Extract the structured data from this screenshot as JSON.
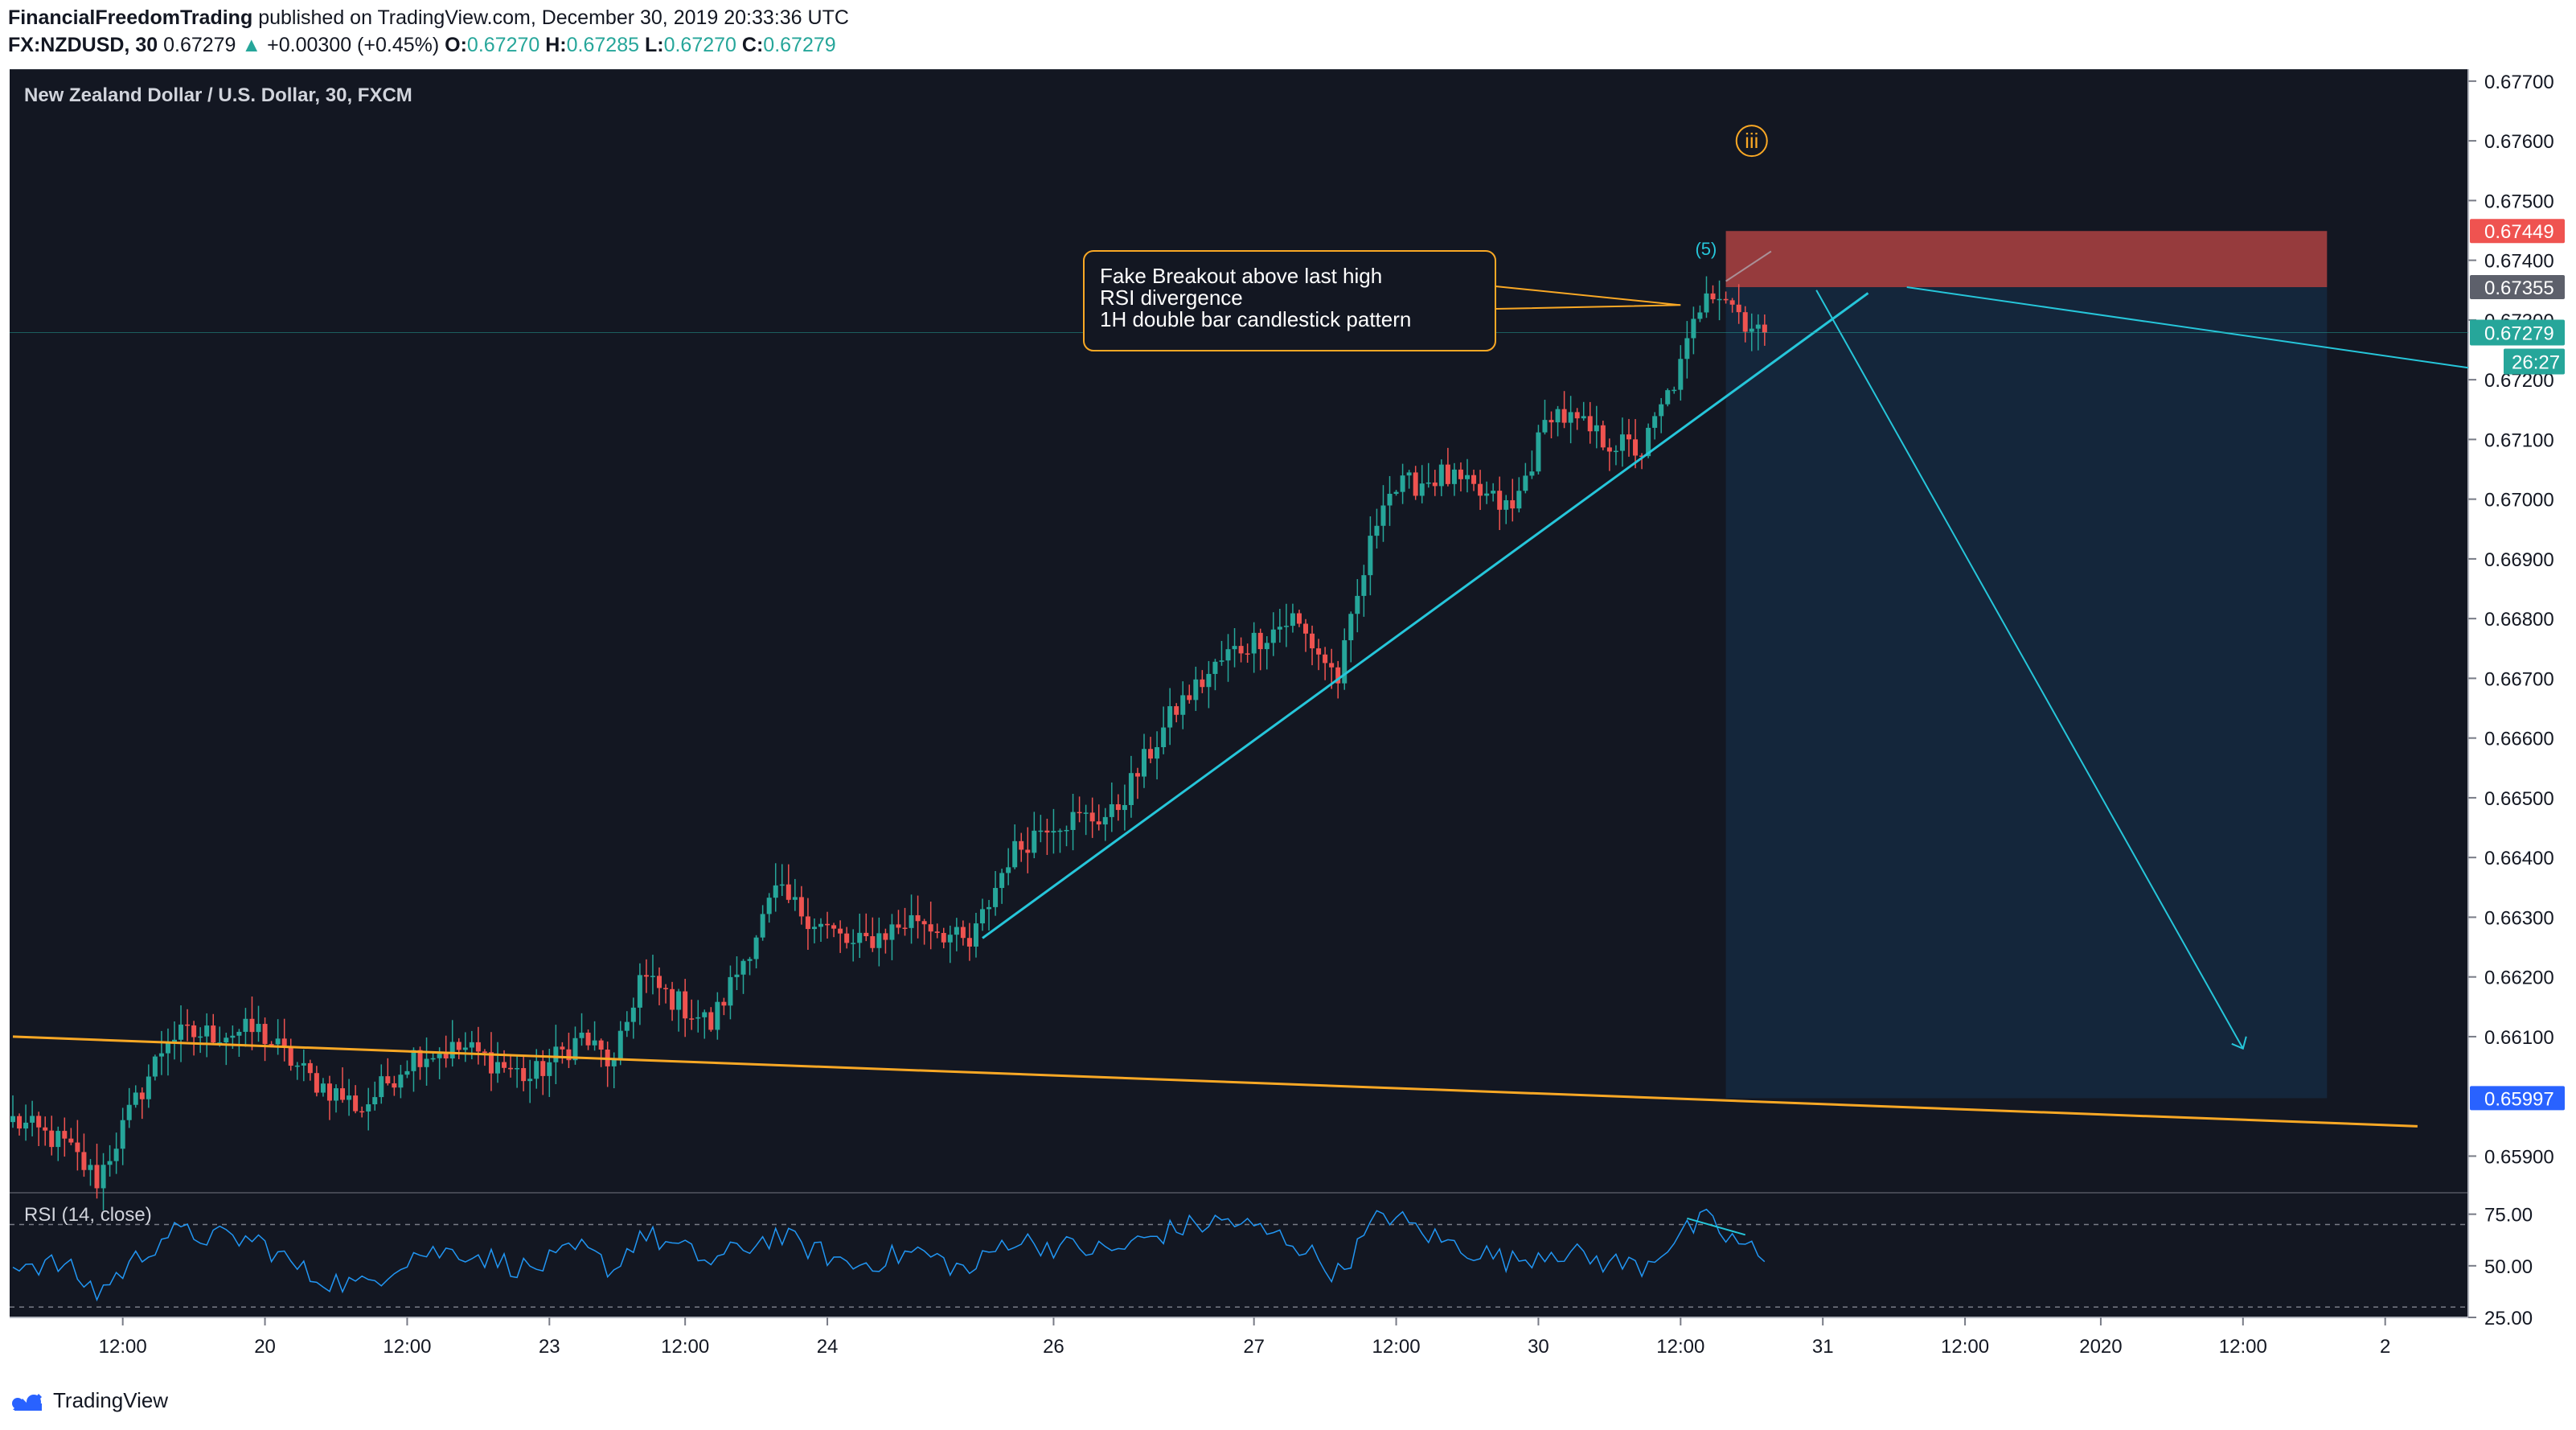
{
  "header": {
    "author": "FinancialFreedomTrading",
    "published_text": "published on TradingView.com, December 30, 2019 20:33:36 UTC",
    "symbol": "FX:NZDUSD, 30",
    "last_price": "0.67279",
    "change": "+0.00300 (+0.45%)",
    "o_label": "O:",
    "o_value": "0.67270",
    "h_label": "H:",
    "h_value": "0.67285",
    "l_label": "L:",
    "l_value": "0.67270",
    "c_label": "C:",
    "c_value": "0.67279"
  },
  "footer": {
    "brand": "TradingView"
  },
  "colors": {
    "background": "#131722",
    "up": "#26a69a",
    "down": "#ef5350",
    "trendline": "#26c6da",
    "support_line": "#f9a825",
    "stop_zone": "#ef5350",
    "target_zone": "#2196f3",
    "callout_border": "#f9a825"
  },
  "chart_data": [
    {
      "type": "candlestick",
      "title": "New Zealand Dollar / U.S. Dollar, 30, FXCM",
      "ylim": [
        0.6584,
        0.6772
      ],
      "y_ticks": [
        "0.65900",
        "0.66100",
        "0.66200",
        "0.66300",
        "0.66400",
        "0.66500",
        "0.66600",
        "0.66700",
        "0.66800",
        "0.66900",
        "0.67000",
        "0.67100",
        "0.67200",
        "0.67300",
        "0.67400",
        "0.67500",
        "0.67600",
        "0.67700"
      ],
      "x_ticks": [
        {
          "label": "12:00",
          "slot": 17
        },
        {
          "label": "20",
          "slot": 39
        },
        {
          "label": "12:00",
          "slot": 61
        },
        {
          "label": "23",
          "slot": 83
        },
        {
          "label": "12:00",
          "slot": 104
        },
        {
          "label": "24",
          "slot": 126
        },
        {
          "label": "26",
          "slot": 161
        },
        {
          "label": "27",
          "slot": 192
        },
        {
          "label": "12:00",
          "slot": 214
        },
        {
          "label": "30",
          "slot": 236
        },
        {
          "label": "12:00",
          "slot": 258
        },
        {
          "label": "31",
          "slot": 280
        },
        {
          "label": "12:00",
          "slot": 302
        },
        {
          "label": "2020",
          "slot": 323
        },
        {
          "label": "12:00",
          "slot": 345
        },
        {
          "label": "2",
          "slot": 367
        }
      ],
      "price_path": [
        [
          0,
          0.6596
        ],
        [
          8,
          0.6592
        ],
        [
          13,
          0.6586
        ],
        [
          24,
          0.661
        ],
        [
          38,
          0.6611
        ],
        [
          46,
          0.6603
        ],
        [
          54,
          0.6598
        ],
        [
          62,
          0.6607
        ],
        [
          70,
          0.6608
        ],
        [
          80,
          0.6603
        ],
        [
          88,
          0.661
        ],
        [
          93,
          0.6605
        ],
        [
          97,
          0.662
        ],
        [
          108,
          0.6612
        ],
        [
          118,
          0.6634
        ],
        [
          130,
          0.6625
        ],
        [
          140,
          0.663
        ],
        [
          148,
          0.6625
        ],
        [
          154,
          0.664
        ],
        [
          160,
          0.6646
        ],
        [
          170,
          0.6647
        ],
        [
          180,
          0.6665
        ],
        [
          188,
          0.6674
        ],
        [
          198,
          0.668
        ],
        [
          205,
          0.667
        ],
        [
          212,
          0.6701
        ],
        [
          221,
          0.6704
        ],
        [
          232,
          0.6698
        ],
        [
          238,
          0.6715
        ],
        [
          246,
          0.671
        ],
        [
          252,
          0.6708
        ],
        [
          258,
          0.6722
        ],
        [
          262,
          0.6736
        ],
        [
          265,
          0.6734
        ],
        [
          268,
          0.673
        ],
        [
          271,
          0.6728
        ]
      ],
      "last_price_label": "0.67279",
      "countdown": "26:27",
      "price_tags": [
        {
          "value": 0.67449,
          "label": "0.67449",
          "color": "#ef5350"
        },
        {
          "value": 0.67355,
          "label": "0.67355",
          "color": "#5d606b"
        },
        {
          "value": 0.65997,
          "label": "0.65997",
          "color": "#2962ff"
        }
      ],
      "trendline": {
        "start": [
          150,
          0.66265
        ],
        "end": [
          287,
          0.67345
        ]
      },
      "support_line": {
        "start": [
          0,
          0.661
        ],
        "end": [
          372,
          0.6595
        ]
      },
      "position": {
        "entry": 0.67355,
        "stop": 0.67449,
        "target": 0.65997,
        "start_slot": 265,
        "end_slot": 358
      },
      "projection": {
        "start": [
          279,
          0.6735
        ],
        "end": [
          345,
          0.6608
        ]
      },
      "annotations": {
        "wave_label": "iii",
        "wave5_label": "(5)",
        "callout": [
          "Fake Breakout above last high",
          "RSI divergence",
          "1H double bar candlestick pattern"
        ]
      }
    },
    {
      "type": "line",
      "title": "RSI (14, close)",
      "ylim": [
        25,
        85
      ],
      "y_ticks": [
        "75.00",
        "50.00",
        "25.00"
      ],
      "levels": [
        70,
        30
      ],
      "anchors": [
        [
          0,
          52
        ],
        [
          8,
          50
        ],
        [
          13,
          37
        ],
        [
          24,
          66
        ],
        [
          38,
          62
        ],
        [
          46,
          45
        ],
        [
          54,
          40
        ],
        [
          62,
          56
        ],
        [
          70,
          57
        ],
        [
          80,
          48
        ],
        [
          88,
          58
        ],
        [
          93,
          48
        ],
        [
          97,
          66
        ],
        [
          108,
          52
        ],
        [
          118,
          65
        ],
        [
          130,
          50
        ],
        [
          140,
          57
        ],
        [
          148,
          47
        ],
        [
          154,
          63
        ],
        [
          160,
          60
        ],
        [
          170,
          57
        ],
        [
          180,
          68
        ],
        [
          188,
          72
        ],
        [
          198,
          62
        ],
        [
          205,
          46
        ],
        [
          212,
          76
        ],
        [
          221,
          62
        ],
        [
          232,
          52
        ],
        [
          238,
          58
        ],
        [
          246,
          52
        ],
        [
          252,
          50
        ],
        [
          258,
          65
        ],
        [
          262,
          72
        ],
        [
          265,
          64
        ],
        [
          268,
          60
        ],
        [
          271,
          52
        ]
      ],
      "divergence": {
        "start": [
          259,
          73
        ],
        "end": [
          268,
          65
        ]
      }
    }
  ]
}
